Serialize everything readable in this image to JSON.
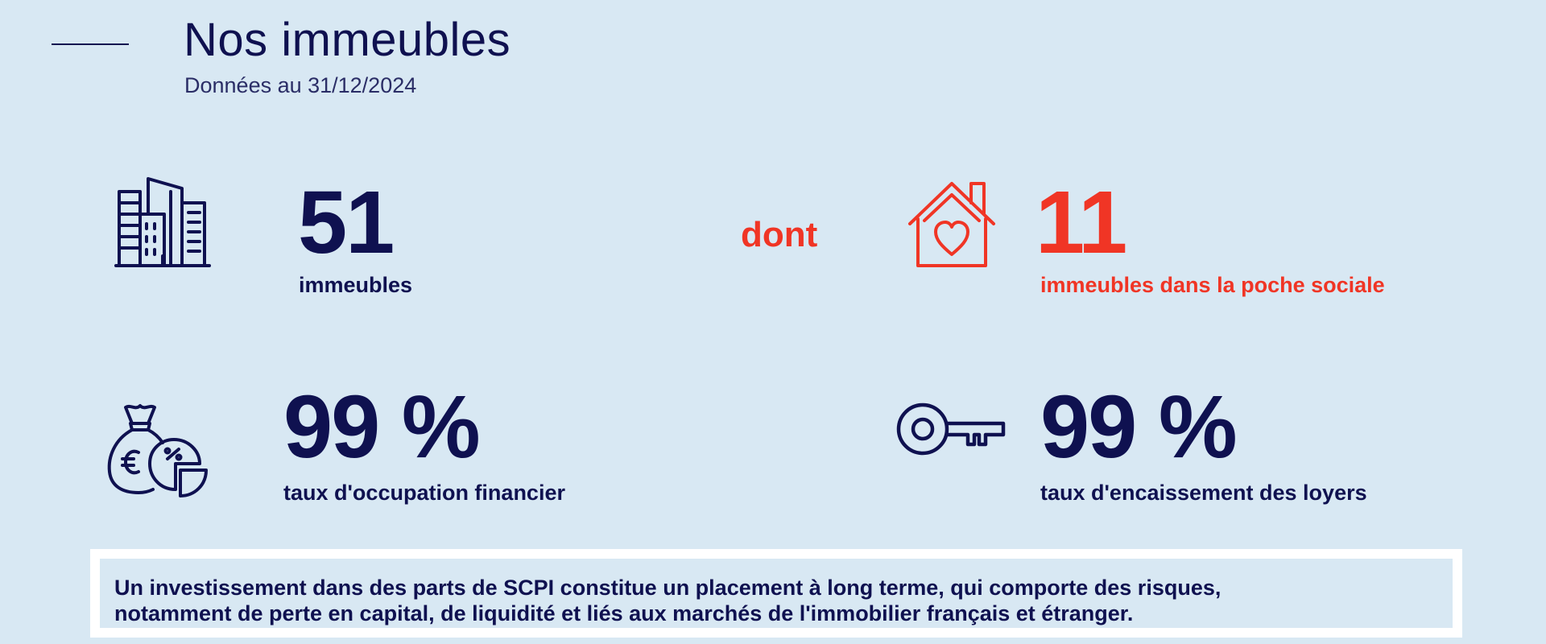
{
  "header": {
    "title": "Nos immeubles",
    "subtitle": "Données au 31/12/2024"
  },
  "stats": {
    "buildings": {
      "value": "51",
      "label": "immeubles",
      "icon": "buildings-icon"
    },
    "connector": "dont",
    "social": {
      "value": "11",
      "label": "immeubles dans la poche sociale",
      "icon": "house-heart-icon"
    },
    "occupancy": {
      "value": "99 %",
      "label": "taux d'occupation financier",
      "icon": "money-bag-chart-icon"
    },
    "collection": {
      "value": "99 %",
      "label": "taux d'encaissement des loyers",
      "icon": "key-icon"
    }
  },
  "disclaimer": {
    "line1": "Un investissement dans des parts de SCPI constitue un placement à long terme, qui comporte des risques,",
    "line2": "notamment de perte en capital, de liquidité et liés aux marchés de l'immobilier français et étranger."
  },
  "colors": {
    "background": "#d8e8f3",
    "navy": "#0f1150",
    "red": "#f03525"
  }
}
